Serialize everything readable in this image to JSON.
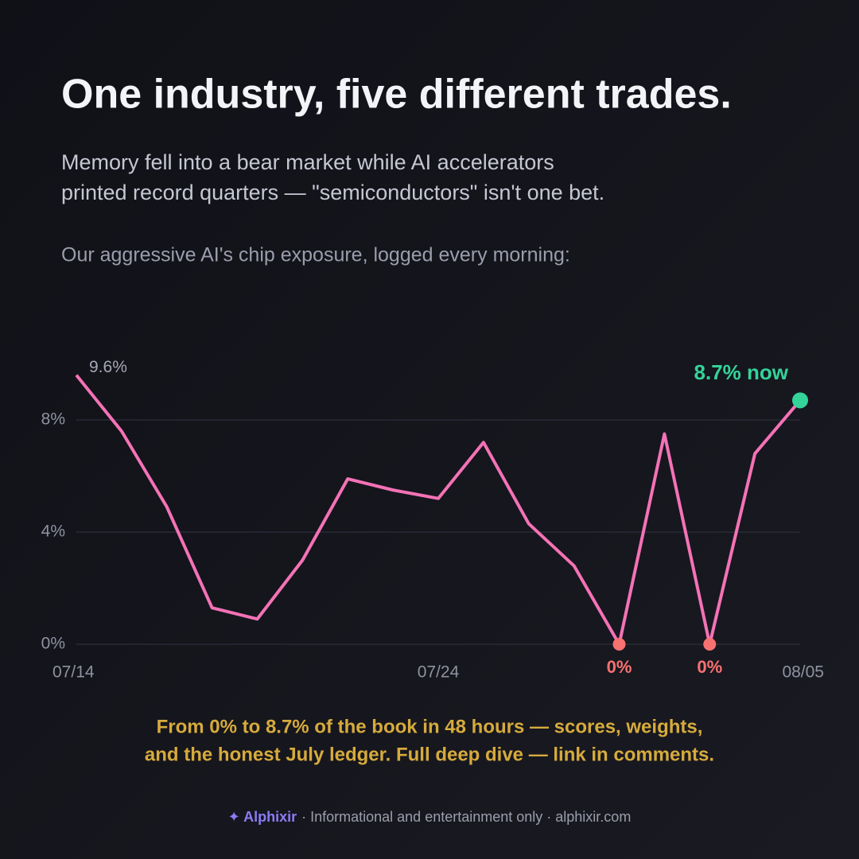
{
  "header": {
    "title": "One industry, five different trades.",
    "subtitle": [
      "Memory fell into a bear market while AI accelerators",
      "printed record quarters — \"semiconductors\" isn't one bet."
    ],
    "intro": "Our aggressive AI's chip exposure, logged every morning:"
  },
  "chart_data": {
    "type": "line",
    "categories": [
      "07/14",
      null,
      null,
      null,
      null,
      null,
      null,
      null,
      "07/24",
      null,
      null,
      null,
      null,
      null,
      null,
      null,
      "08/05"
    ],
    "series": [
      {
        "color": "#f472b6",
        "values": [
          9.6,
          7.6,
          4.9,
          1.3,
          0.9,
          3.0,
          5.9,
          5.5,
          5.2,
          7.2,
          4.3,
          2.8,
          0,
          7.5,
          0,
          6.8,
          8.7
        ],
        "value_labels": [
          "9.6%",
          null,
          null,
          null,
          null,
          null,
          null,
          null,
          null,
          null,
          null,
          null,
          "0%",
          null,
          "0%",
          null,
          "8.7% now"
        ],
        "marker_colors": [
          null,
          null,
          null,
          null,
          null,
          null,
          null,
          null,
          null,
          null,
          null,
          null,
          "#f87171",
          null,
          "#f87171",
          null,
          "#34d399"
        ]
      }
    ],
    "ylim": [
      0,
      10
    ],
    "yticks": [
      {
        "value": 0,
        "label": "0%"
      },
      {
        "value": 4,
        "label": "4%"
      },
      {
        "value": 8,
        "label": "8%"
      }
    ],
    "grid": true
  },
  "footer": {
    "caption": [
      "From 0% to 8.7% of the book in 48 hours — scores, weights,",
      "and the honest July ledger. Full deep dive — link in comments."
    ],
    "brand": "✦ Alphixir",
    "disclaimer": "· Informational and entertainment only · alphixir.com"
  }
}
